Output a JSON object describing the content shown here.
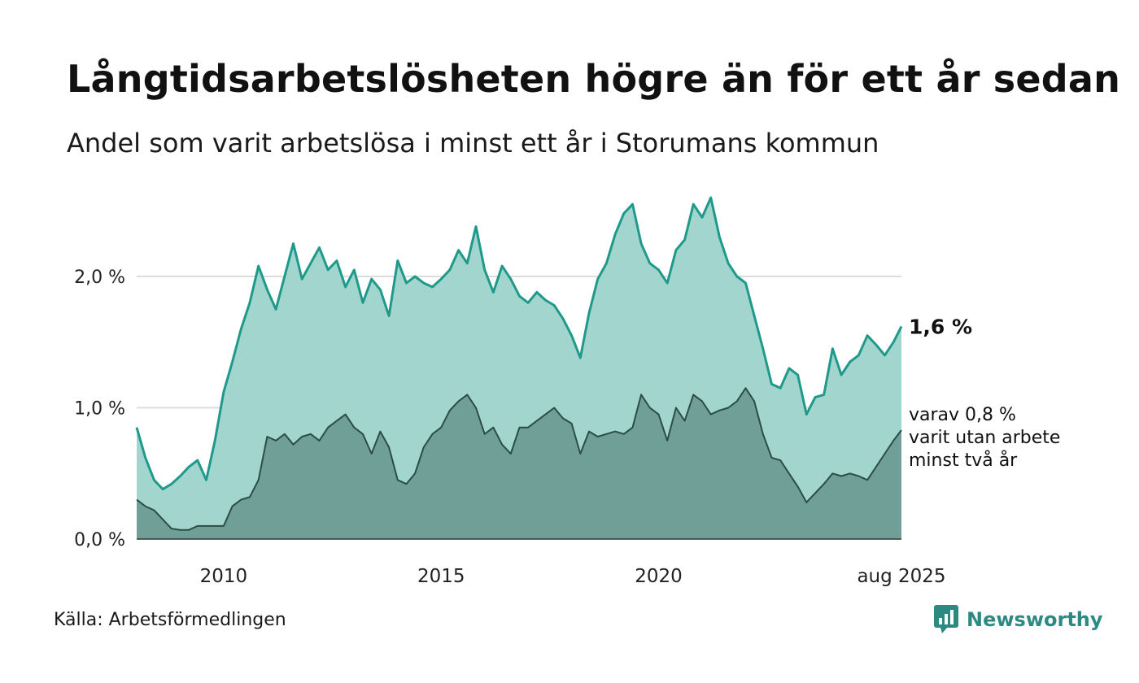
{
  "title": "Långtidsarbetslösheten högre än för ett år sedan",
  "subtitle": "Andel som varit arbetslösa i minst ett år i Storumans kommun",
  "source": "Källa: Arbetsförmedlingen",
  "brand": {
    "name": "Newsworthy",
    "icon": "newsworthy-logo-icon"
  },
  "colors": {
    "main_line": "#1f9a8a",
    "main_fill": "#a3d5cf",
    "sub_line": "#2c4d47",
    "sub_fill": "#6f9f97",
    "grid": "#dddddd",
    "text": "#111111",
    "brand": "#2d8a83"
  },
  "chart_data": {
    "type": "area",
    "y_ticks": [
      "0,0 %",
      "1,0 %",
      "2,0 %"
    ],
    "y_tick_values": [
      0,
      1,
      2
    ],
    "x_ticks": [
      "2010",
      "2015",
      "2020",
      "aug 2025"
    ],
    "x_tick_values": [
      2010,
      2015,
      2020,
      2025.583
    ],
    "xlim": [
      2008.0,
      2025.583
    ],
    "ylim": [
      0,
      2.6
    ],
    "grid": "horizontal",
    "end_label_main": "1,6 %",
    "end_label_sub": [
      "varav 0,8 %",
      "varit utan arbete",
      "minst två år"
    ],
    "series": [
      {
        "key": "main",
        "x": [
          2008.0,
          2008.2,
          2008.4,
          2008.6,
          2008.8,
          2009.0,
          2009.2,
          2009.4,
          2009.6,
          2009.8,
          2010.0,
          2010.2,
          2010.4,
          2010.6,
          2010.8,
          2011.0,
          2011.2,
          2011.4,
          2011.6,
          2011.8,
          2012.0,
          2012.2,
          2012.4,
          2012.6,
          2012.8,
          2013.0,
          2013.2,
          2013.4,
          2013.6,
          2013.8,
          2014.0,
          2014.2,
          2014.4,
          2014.6,
          2014.8,
          2015.0,
          2015.2,
          2015.4,
          2015.6,
          2015.8,
          2016.0,
          2016.2,
          2016.4,
          2016.6,
          2016.8,
          2017.0,
          2017.2,
          2017.4,
          2017.6,
          2017.8,
          2018.0,
          2018.2,
          2018.4,
          2018.6,
          2018.8,
          2019.0,
          2019.2,
          2019.4,
          2019.6,
          2019.8,
          2020.0,
          2020.2,
          2020.4,
          2020.6,
          2020.8,
          2021.0,
          2021.2,
          2021.4,
          2021.6,
          2021.8,
          2022.0,
          2022.2,
          2022.4,
          2022.6,
          2022.8,
          2023.0,
          2023.2,
          2023.4,
          2023.6,
          2023.8,
          2024.0,
          2024.2,
          2024.4,
          2024.6,
          2024.8,
          2025.0,
          2025.2,
          2025.4,
          2025.583
        ],
        "values": [
          0.85,
          0.62,
          0.45,
          0.38,
          0.42,
          0.48,
          0.55,
          0.6,
          0.45,
          0.75,
          1.12,
          1.35,
          1.6,
          1.8,
          2.08,
          1.9,
          1.75,
          2.0,
          2.25,
          1.98,
          2.1,
          2.22,
          2.05,
          2.12,
          1.92,
          2.05,
          1.8,
          1.98,
          1.9,
          1.7,
          2.12,
          1.95,
          2.0,
          1.95,
          1.92,
          1.98,
          2.05,
          2.2,
          2.1,
          2.38,
          2.05,
          1.88,
          2.08,
          1.98,
          1.85,
          1.8,
          1.88,
          1.82,
          1.78,
          1.68,
          1.55,
          1.38,
          1.72,
          1.98,
          2.1,
          2.32,
          2.48,
          2.55,
          2.25,
          2.1,
          2.05,
          1.95,
          2.2,
          2.28,
          2.55,
          2.45,
          2.6,
          2.3,
          2.1,
          2.0,
          1.95,
          1.7,
          1.45,
          1.18,
          1.15,
          1.3,
          1.25,
          0.95,
          1.08,
          1.1,
          1.45,
          1.25,
          1.35,
          1.4,
          1.55,
          1.48,
          1.4,
          1.5,
          1.62
        ]
      },
      {
        "key": "sub",
        "x": [
          2008.0,
          2008.2,
          2008.4,
          2008.6,
          2008.8,
          2009.0,
          2009.2,
          2009.4,
          2009.6,
          2009.8,
          2010.0,
          2010.2,
          2010.4,
          2010.6,
          2010.8,
          2011.0,
          2011.2,
          2011.4,
          2011.6,
          2011.8,
          2012.0,
          2012.2,
          2012.4,
          2012.6,
          2012.8,
          2013.0,
          2013.2,
          2013.4,
          2013.6,
          2013.8,
          2014.0,
          2014.2,
          2014.4,
          2014.6,
          2014.8,
          2015.0,
          2015.2,
          2015.4,
          2015.6,
          2015.8,
          2016.0,
          2016.2,
          2016.4,
          2016.6,
          2016.8,
          2017.0,
          2017.2,
          2017.4,
          2017.6,
          2017.8,
          2018.0,
          2018.2,
          2018.4,
          2018.6,
          2018.8,
          2019.0,
          2019.2,
          2019.4,
          2019.6,
          2019.8,
          2020.0,
          2020.2,
          2020.4,
          2020.6,
          2020.8,
          2021.0,
          2021.2,
          2021.4,
          2021.6,
          2021.8,
          2022.0,
          2022.2,
          2022.4,
          2022.6,
          2022.8,
          2023.0,
          2023.2,
          2023.4,
          2023.6,
          2023.8,
          2024.0,
          2024.2,
          2024.4,
          2024.6,
          2024.8,
          2025.0,
          2025.2,
          2025.4,
          2025.583
        ],
        "values": [
          0.3,
          0.25,
          0.22,
          0.15,
          0.08,
          0.07,
          0.07,
          0.1,
          0.1,
          0.1,
          0.1,
          0.25,
          0.3,
          0.32,
          0.45,
          0.78,
          0.75,
          0.8,
          0.72,
          0.78,
          0.8,
          0.75,
          0.85,
          0.9,
          0.95,
          0.85,
          0.8,
          0.65,
          0.82,
          0.7,
          0.45,
          0.42,
          0.5,
          0.7,
          0.8,
          0.85,
          0.98,
          1.05,
          1.1,
          1.0,
          0.8,
          0.85,
          0.72,
          0.65,
          0.85,
          0.85,
          0.9,
          0.95,
          1.0,
          0.92,
          0.88,
          0.65,
          0.82,
          0.78,
          0.8,
          0.82,
          0.8,
          0.85,
          1.1,
          1.0,
          0.95,
          0.75,
          1.0,
          0.9,
          1.1,
          1.05,
          0.95,
          0.98,
          1.0,
          1.05,
          1.15,
          1.05,
          0.8,
          0.62,
          0.6,
          0.5,
          0.4,
          0.28,
          0.35,
          0.42,
          0.5,
          0.48,
          0.5,
          0.48,
          0.45,
          0.55,
          0.65,
          0.75,
          0.83
        ]
      }
    ]
  }
}
